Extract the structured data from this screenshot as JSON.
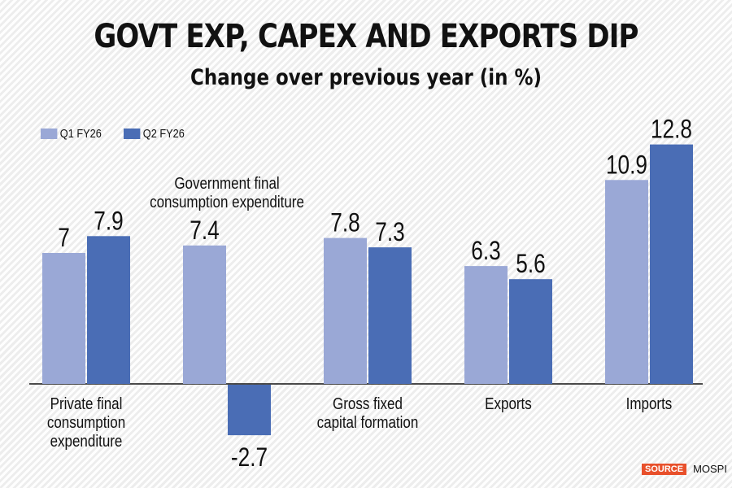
{
  "header": {
    "title": "GOVT EXP, CAPEX AND EXPORTS DIP",
    "subtitle": "Change over previous year (in %)"
  },
  "legend": [
    {
      "label": "Q1 FY26",
      "color": "#9aa8d6"
    },
    {
      "label": "Q2 FY26",
      "color": "#4a6db5"
    }
  ],
  "source": {
    "badge": "SOURCE",
    "text": "MOSPI"
  },
  "chart_data": {
    "type": "bar",
    "title": "GOVT EXP, CAPEX AND EXPORTS DIP",
    "subtitle": "Change over previous year (in %)",
    "xlabel": "",
    "ylabel": "",
    "categories": [
      "Private final consumption expenditure",
      "Government final consumption expenditure",
      "Gross fixed capital formation",
      "Exports",
      "Imports"
    ],
    "category_label_lines": [
      [
        "Private final",
        "consumption",
        "expenditure"
      ],
      [
        "Government final",
        "consumption expenditure"
      ],
      [
        "Gross fixed",
        "capital formation"
      ],
      [
        "Exports"
      ],
      [
        "Imports"
      ]
    ],
    "series": [
      {
        "name": "Q1 FY26",
        "values": [
          7,
          7.4,
          7.8,
          6.3,
          10.9
        ],
        "labels": [
          "7",
          "7.4",
          "7.8",
          "6.3",
          "10.9"
        ]
      },
      {
        "name": "Q2 FY26",
        "values": [
          7.9,
          -2.7,
          7.3,
          5.6,
          12.8
        ],
        "labels": [
          "7.9",
          "-2.7",
          "7.3",
          "5.6",
          "12.8"
        ]
      }
    ],
    "ylim": [
      -2.7,
      12.8
    ],
    "grid": false,
    "axis_ticks": false,
    "legend_position": "top-left",
    "data_labels": true
  }
}
